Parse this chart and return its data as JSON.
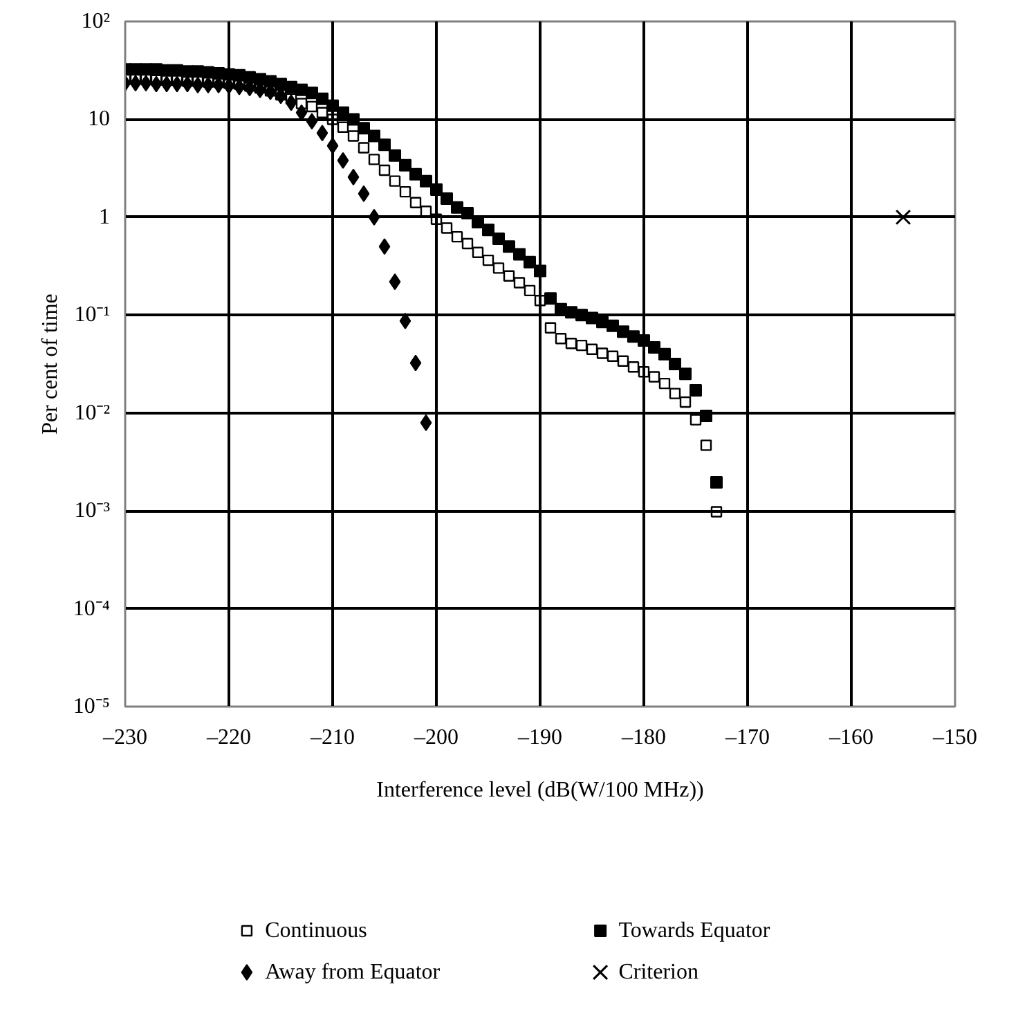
{
  "chart_data": {
    "type": "scatter",
    "xlabel": "Interference level (dB(W/100 MHz))",
    "ylabel": "Per cent of time",
    "xlim": [
      -230,
      -150
    ],
    "ylim": [
      1e-05,
      100
    ],
    "log": "y",
    "grid": true,
    "legend": "bottom",
    "xticks": [
      {
        "value": -230,
        "label": "–230"
      },
      {
        "value": -220,
        "label": "–220"
      },
      {
        "value": -210,
        "label": "–210"
      },
      {
        "value": -200,
        "label": "–200"
      },
      {
        "value": -190,
        "label": "–190"
      },
      {
        "value": -180,
        "label": "–180"
      },
      {
        "value": -170,
        "label": "–170"
      },
      {
        "value": -160,
        "label": "–160"
      },
      {
        "value": -150,
        "label": "–150"
      }
    ],
    "yticks": [
      {
        "value": 1e-05,
        "label": "10⁻⁵"
      },
      {
        "value": 0.0001,
        "label": "10⁻⁴"
      },
      {
        "value": 0.001,
        "label": "10⁻³"
      },
      {
        "value": 0.01,
        "label": "10⁻²"
      },
      {
        "value": 0.1,
        "label": "10⁻¹"
      },
      1,
      10,
      {
        "value": 100,
        "label": "10²"
      }
    ],
    "series": [
      {
        "name": "Continuous",
        "color": "#000000",
        "marker": "square_open",
        "x": [
          -230,
          -229,
          -228,
          -227,
          -226,
          -225,
          -224,
          -223,
          -222,
          -221,
          -220,
          -219,
          -218,
          -217,
          -216,
          -215,
          -214,
          -213,
          -212,
          -211,
          -210,
          -209,
          -208,
          -207,
          -206,
          -205,
          -204,
          -203,
          -202,
          -201,
          -200,
          -199,
          -198,
          -197,
          -196,
          -195,
          -194,
          -193,
          -192,
          -191,
          -190,
          -189,
          -188,
          -187,
          -186,
          -185,
          -184,
          -183,
          -182,
          -181,
          -180,
          -179,
          -178,
          -177,
          -176,
          -175,
          -174,
          -173
        ],
        "values": [
          25.7,
          25.7,
          25.7,
          25.1,
          25.1,
          25.1,
          24.5,
          24.5,
          24.0,
          24.0,
          23.4,
          22.9,
          21.9,
          20.9,
          19.5,
          17.8,
          16.2,
          14.5,
          13.5,
          11.7,
          10.0,
          8.32,
          6.76,
          5.13,
          3.89,
          3.02,
          2.34,
          1.82,
          1.41,
          1.15,
          0.955,
          0.776,
          0.631,
          0.537,
          0.437,
          0.363,
          0.302,
          0.251,
          0.214,
          0.178,
          0.141,
          0.0741,
          0.0575,
          0.0513,
          0.049,
          0.0447,
          0.0407,
          0.038,
          0.0339,
          0.0295,
          0.0263,
          0.0234,
          0.02,
          0.0158,
          0.0129,
          0.00851,
          0.00468,
          0.000977
        ]
      },
      {
        "name": "Towards Equator",
        "color": "#000000",
        "marker": "square",
        "x": [
          -230,
          -229,
          -228,
          -227,
          -226,
          -225,
          -224,
          -223,
          -222,
          -221,
          -220,
          -219,
          -218,
          -217,
          -216,
          -215,
          -214,
          -213,
          -212,
          -211,
          -210,
          -209,
          -208,
          -207,
          -206,
          -205,
          -204,
          -203,
          -202,
          -201,
          -200,
          -199,
          -198,
          -197,
          -196,
          -195,
          -194,
          -193,
          -192,
          -191,
          -190,
          -189,
          -188,
          -187,
          -186,
          -185,
          -184,
          -183,
          -182,
          -181,
          -180,
          -179,
          -178,
          -177,
          -176,
          -175,
          -174,
          -173
        ],
        "values": [
          32.4,
          32.4,
          32.4,
          32.4,
          31.6,
          31.6,
          30.9,
          30.9,
          30.2,
          29.5,
          28.8,
          28.2,
          26.9,
          25.7,
          24.5,
          22.9,
          21.4,
          20.0,
          18.6,
          16.2,
          13.8,
          11.7,
          10.0,
          8.13,
          6.76,
          5.5,
          4.27,
          3.39,
          2.75,
          2.34,
          1.91,
          1.55,
          1.26,
          1.1,
          0.891,
          0.741,
          0.603,
          0.501,
          0.417,
          0.347,
          0.282,
          0.148,
          0.115,
          0.107,
          0.1,
          0.0933,
          0.0851,
          0.0776,
          0.0676,
          0.0603,
          0.055,
          0.0468,
          0.0398,
          0.0316,
          0.0251,
          0.017,
          0.00933,
          0.00195
        ]
      },
      {
        "name": "Away from Equator",
        "color": "#000000",
        "marker": "diamond",
        "x": [
          -230,
          -229,
          -228,
          -227,
          -226,
          -225,
          -224,
          -223,
          -222,
          -221,
          -220,
          -219,
          -218,
          -217,
          -216,
          -215,
          -214,
          -213,
          -212,
          -211,
          -210,
          -209,
          -208,
          -207,
          -206,
          -205,
          -204,
          -203,
          -202,
          -201
        ],
        "values": [
          23.4,
          23.4,
          23.4,
          22.9,
          22.9,
          22.9,
          22.9,
          22.4,
          22.4,
          22.4,
          21.9,
          21.4,
          20.9,
          20.0,
          19.1,
          17.4,
          14.8,
          11.7,
          9.55,
          7.24,
          5.37,
          3.8,
          2.57,
          1.74,
          1.0,
          0.501,
          0.219,
          0.0871,
          0.0324,
          0.00794
        ]
      },
      {
        "name": "Criterion",
        "color": "#000000",
        "marker": "cross",
        "x": [
          -155
        ],
        "values": [
          1
        ]
      }
    ]
  }
}
